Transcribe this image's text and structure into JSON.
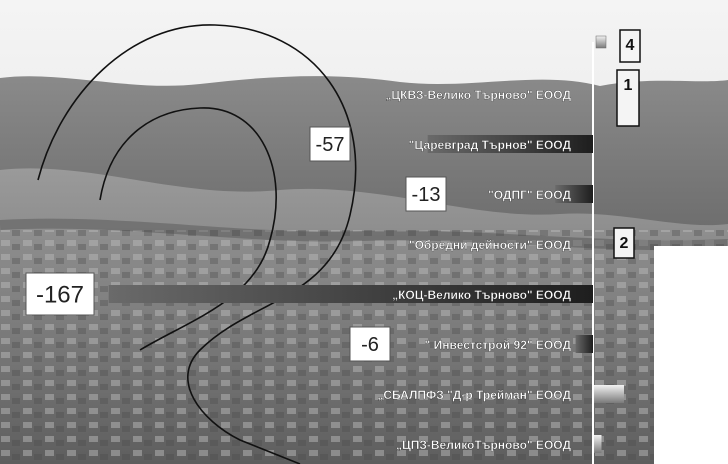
{
  "chart_data": {
    "type": "bar",
    "orientation": "horizontal",
    "categories": [
      "„ЦКВЗ-Велико Търново\" ЕООД",
      "\"Царевград Търнов\" ЕООД",
      "\"ОДПГ\" ЕООД",
      "\"Обредни дейности\" ЕООД",
      "„КОЦ-Велико Търново\" ЕООД",
      "\" Инвестстрой 92\" ЕООД",
      "„СБАЛПФЗ \"Д-р Трейман\" ЕООД",
      "„ЦПЗ-ВеликоТърново\" ЕООД"
    ],
    "values": [
      0,
      -57,
      -13,
      0,
      -167,
      -6,
      4,
      1
    ],
    "data_labels": [
      "",
      "-57",
      "-13",
      "",
      "-167",
      "-6",
      "",
      ""
    ],
    "callouts": [
      "4",
      "1",
      "2"
    ]
  },
  "colors": {
    "negative_bar_light": "#6a6a6a",
    "negative_bar_dark": "#1e1e1e",
    "positive_bar_light": "#f2f2f2",
    "positive_bar_dark": "#7a7a7a",
    "label_text": "#ffffff",
    "value_box": "#ffffff"
  }
}
